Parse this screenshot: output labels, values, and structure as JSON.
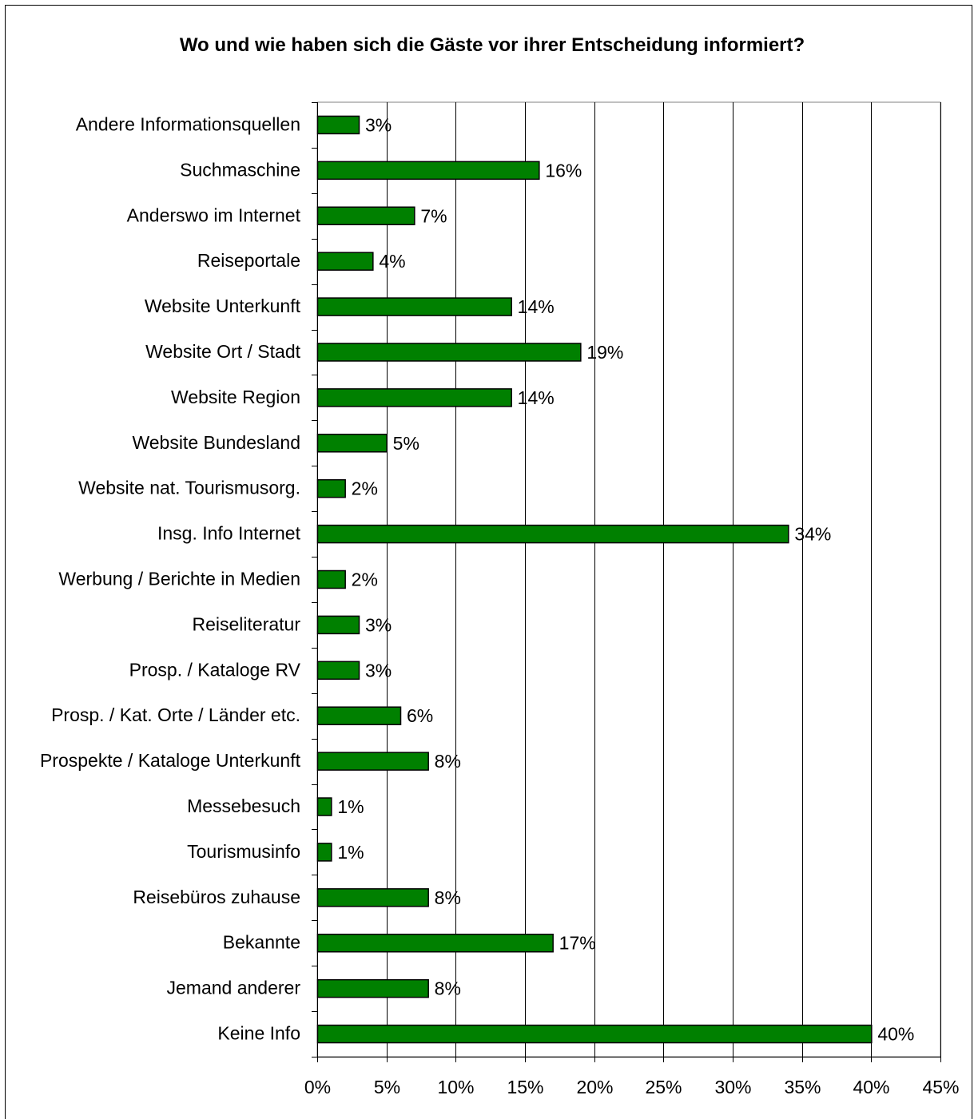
{
  "chart_data": {
    "type": "bar",
    "orientation": "horizontal",
    "title": "Wo und wie haben sich die Gäste vor ihrer Entscheidung informiert?",
    "xlabel": "",
    "ylabel": "",
    "xlim": [
      0,
      45
    ],
    "xticks": [
      0,
      5,
      10,
      15,
      20,
      25,
      30,
      35,
      40,
      45
    ],
    "xtick_labels": [
      "0%",
      "5%",
      "10%",
      "15%",
      "20%",
      "25%",
      "30%",
      "35%",
      "40%",
      "45%"
    ],
    "grid": "vertical gridlines",
    "legend": "none",
    "categories": [
      "Andere Informationsquellen",
      "Suchmaschine",
      "Anderswo im Internet",
      "Reiseportale",
      "Website Unterkunft",
      "Website Ort / Stadt",
      "Website Region",
      "Website Bundesland",
      "Website nat. Tourismusorg.",
      "Insg. Info Internet",
      "Werbung / Berichte in Medien",
      "Reiseliteratur",
      "Prosp. / Kataloge RV",
      "Prosp. / Kat. Orte / Länder etc.",
      "Prospekte / Kataloge Unterkunft",
      "Messebesuch",
      "Tourismusinfo",
      "Reisebüros zuhause",
      "Bekannte",
      "Jemand anderer",
      "Keine Info"
    ],
    "values": [
      3,
      16,
      7,
      4,
      14,
      19,
      14,
      5,
      2,
      34,
      2,
      3,
      3,
      6,
      8,
      1,
      1,
      8,
      17,
      8,
      40
    ],
    "value_labels": [
      "3%",
      "16%",
      "7%",
      "4%",
      "14%",
      "19%",
      "14%",
      "5%",
      "2%",
      "34%",
      "2%",
      "3%",
      "3%",
      "6%",
      "8%",
      "1%",
      "1%",
      "8%",
      "17%",
      "8%",
      "40%"
    ],
    "colors": {
      "bar": "#008000",
      "bar_edge": "#000000",
      "grid": "#000000",
      "frame": "#808080"
    }
  }
}
